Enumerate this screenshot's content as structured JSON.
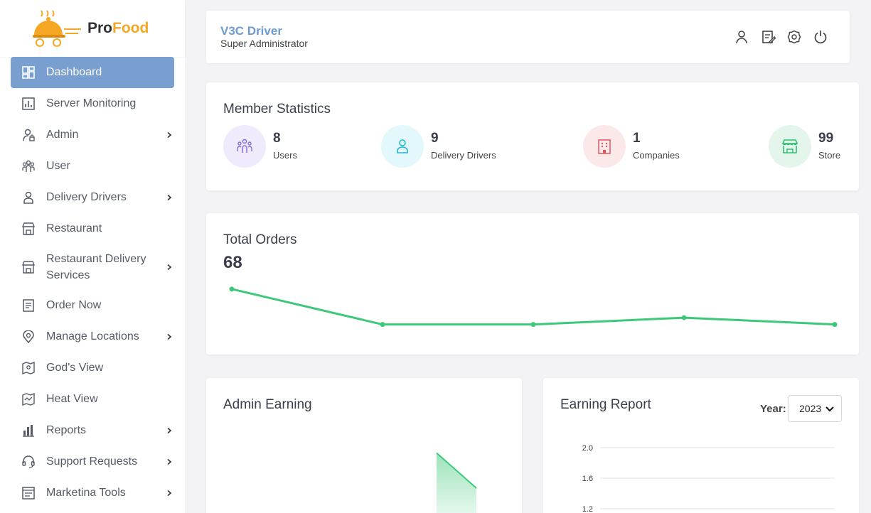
{
  "brand": {
    "name_part1": "Pro",
    "name_part2": "Food",
    "color_accent": "#f5a623"
  },
  "sidebar": {
    "items": [
      {
        "label": "Dashboard",
        "icon": "dashboard-icon",
        "active": true,
        "has_submenu": false
      },
      {
        "label": "Server Monitoring",
        "icon": "bar-chart-icon",
        "active": false,
        "has_submenu": false
      },
      {
        "label": "Admin",
        "icon": "admin-user-icon",
        "active": false,
        "has_submenu": true
      },
      {
        "label": "User",
        "icon": "users-icon",
        "active": false,
        "has_submenu": false
      },
      {
        "label": "Delivery Drivers",
        "icon": "driver-icon",
        "active": false,
        "has_submenu": true
      },
      {
        "label": "Restaurant",
        "icon": "store-icon",
        "active": false,
        "has_submenu": false
      },
      {
        "label": "Restaurant Delivery Services",
        "icon": "store-icon",
        "active": false,
        "has_submenu": true
      },
      {
        "label": "Order Now",
        "icon": "order-icon",
        "active": false,
        "has_submenu": false
      },
      {
        "label": "Manage Locations",
        "icon": "location-pin-icon",
        "active": false,
        "has_submenu": true
      },
      {
        "label": "God's View",
        "icon": "map-icon",
        "active": false,
        "has_submenu": false
      },
      {
        "label": "Heat View",
        "icon": "heat-map-icon",
        "active": false,
        "has_submenu": false
      },
      {
        "label": "Reports",
        "icon": "reports-icon",
        "active": false,
        "has_submenu": true
      },
      {
        "label": "Support Requests",
        "icon": "headset-icon",
        "active": false,
        "has_submenu": true
      },
      {
        "label": "Marketina Tools",
        "icon": "marketing-icon",
        "active": false,
        "has_submenu": true
      }
    ],
    "active_color": "#789fd0"
  },
  "header": {
    "user_name": "V3C Driver",
    "user_role": "Super Administrator",
    "icons": [
      "profile-icon",
      "edit-note-icon",
      "settings-icon",
      "power-icon"
    ]
  },
  "member_stats": {
    "title": "Member Statistics",
    "items": [
      {
        "value": "8",
        "label": "Users",
        "icon": "users-icon",
        "bg": "#efeafc",
        "fg": "#8a6ed8"
      },
      {
        "value": "9",
        "label": "Delivery Drivers",
        "icon": "driver-icon",
        "bg": "#e2f8fa",
        "fg": "#22b8cc"
      },
      {
        "value": "1",
        "label": "Companies",
        "icon": "building-icon",
        "bg": "#fbe9ea",
        "fg": "#e2555e"
      },
      {
        "value": "99",
        "label": "Store",
        "icon": "store-icon",
        "bg": "#e4f6ec",
        "fg": "#2fbf71"
      }
    ]
  },
  "total_orders": {
    "title": "Total Orders",
    "value": "68",
    "line_color": "#3cc878"
  },
  "admin_earning": {
    "title": "Admin Earning"
  },
  "earning_report": {
    "title": "Earning Report",
    "year_label": "Year:",
    "year_value": "2023"
  },
  "chart_data": [
    {
      "type": "line",
      "name": "total-orders-sparkline",
      "x": [
        1,
        2,
        3,
        4,
        5
      ],
      "y": [
        23,
        10,
        10,
        12.5,
        10
      ],
      "ylim": [
        0,
        30
      ],
      "color": "#3cc878"
    },
    {
      "type": "area",
      "name": "admin-earning",
      "x": [
        0,
        1
      ],
      "y": [
        1.9,
        1.0
      ],
      "ylim": [
        0,
        2.0
      ],
      "color": "#3cc878"
    },
    {
      "type": "line",
      "name": "earning-report",
      "y_ticks": [
        "2.0",
        "1.6",
        "1.2"
      ],
      "ylim": [
        0,
        2.0
      ],
      "grid": true
    }
  ]
}
